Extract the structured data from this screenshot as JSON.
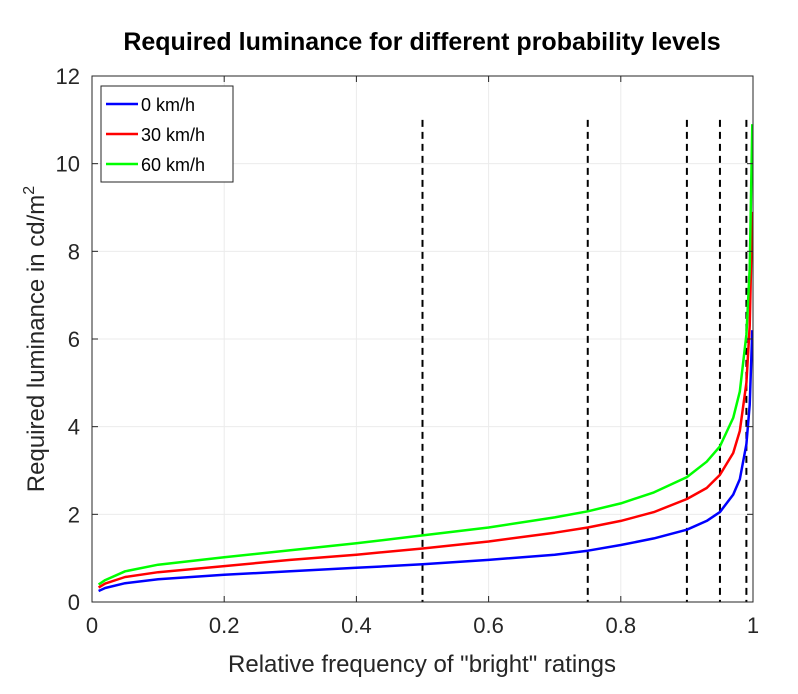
{
  "chart_data": {
    "type": "line",
    "title": "Required luminance for different probability levels",
    "xlabel": "Relative frequency of \"bright\" ratings",
    "ylabel_main": "Required luminance in cd/m",
    "ylabel_superscript": "2",
    "xlim": [
      0,
      1
    ],
    "ylim": [
      0,
      12
    ],
    "xticks": [
      "0",
      "0.2",
      "0.4",
      "0.6",
      "0.8",
      "1"
    ],
    "yticks": [
      "0",
      "2",
      "4",
      "6",
      "8",
      "10",
      "12"
    ],
    "grid": true,
    "legend_position": "top-left",
    "vlines": [
      0.5,
      0.75,
      0.9,
      0.95,
      0.99
    ],
    "vline_top": 11,
    "series": [
      {
        "name": "0 km/h",
        "color": "#0000ff",
        "x": [
          0.01,
          0.02,
          0.05,
          0.1,
          0.2,
          0.3,
          0.4,
          0.5,
          0.6,
          0.7,
          0.75,
          0.8,
          0.85,
          0.9,
          0.93,
          0.95,
          0.97,
          0.98,
          0.99,
          0.995,
          0.999
        ],
        "y": [
          0.25,
          0.32,
          0.43,
          0.52,
          0.62,
          0.7,
          0.78,
          0.86,
          0.96,
          1.08,
          1.17,
          1.3,
          1.45,
          1.65,
          1.85,
          2.05,
          2.45,
          2.8,
          3.6,
          4.5,
          6.2
        ]
      },
      {
        "name": "30 km/h",
        "color": "#ff0000",
        "x": [
          0.01,
          0.02,
          0.05,
          0.1,
          0.2,
          0.3,
          0.4,
          0.5,
          0.6,
          0.7,
          0.75,
          0.8,
          0.85,
          0.9,
          0.93,
          0.95,
          0.97,
          0.98,
          0.99,
          0.995,
          0.999
        ],
        "y": [
          0.33,
          0.42,
          0.57,
          0.68,
          0.82,
          0.96,
          1.08,
          1.22,
          1.38,
          1.58,
          1.7,
          1.85,
          2.05,
          2.35,
          2.6,
          2.9,
          3.4,
          3.9,
          5.0,
          6.3,
          8.9
        ]
      },
      {
        "name": "60 km/h",
        "color": "#00ff00",
        "x": [
          0.01,
          0.02,
          0.05,
          0.1,
          0.2,
          0.3,
          0.4,
          0.5,
          0.6,
          0.7,
          0.75,
          0.8,
          0.85,
          0.9,
          0.93,
          0.95,
          0.97,
          0.98,
          0.99,
          0.995,
          0.999
        ],
        "y": [
          0.4,
          0.5,
          0.7,
          0.85,
          1.02,
          1.18,
          1.34,
          1.52,
          1.7,
          1.93,
          2.07,
          2.25,
          2.5,
          2.85,
          3.2,
          3.55,
          4.2,
          4.8,
          6.1,
          7.6,
          10.9
        ]
      }
    ]
  }
}
